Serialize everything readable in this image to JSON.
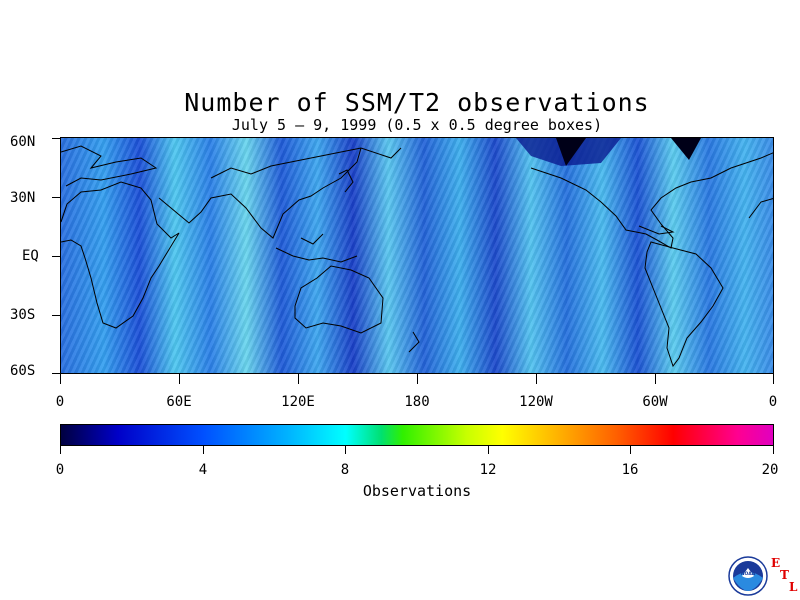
{
  "title": "Number of SSM/T2 observations",
  "subtitle": "July 5 – 9, 1999 (0.5 x 0.5 degree boxes)",
  "map": {
    "latitude_labels": [
      "60N",
      "30N",
      "EQ",
      "30S",
      "60S"
    ],
    "longitude_labels": [
      "0",
      "60E",
      "120E",
      "180",
      "120W",
      "60W",
      "0"
    ]
  },
  "colorbar": {
    "tick_labels": [
      "0",
      "4",
      "8",
      "12",
      "16",
      "20"
    ],
    "title": "Observations",
    "range": [
      0,
      20
    ],
    "colors": [
      "#000040",
      "#0000c8",
      "#0050ff",
      "#00b4ff",
      "#00ffff",
      "#30f000",
      "#ffff00",
      "#ffb000",
      "#ff6000",
      "#ff0000",
      "#ff0090"
    ]
  },
  "logo": {
    "noaa_text": "NOAA",
    "etl_letters": [
      "E",
      "T",
      "L"
    ]
  }
}
